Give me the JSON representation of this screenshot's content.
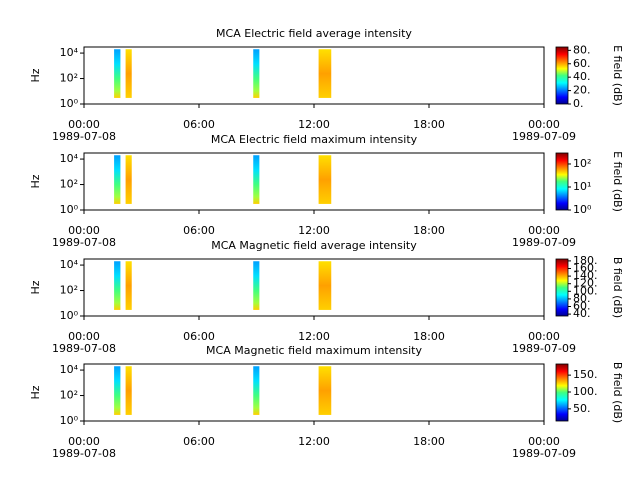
{
  "chart_data": [
    {
      "type": "spectrogram",
      "title": "MCA  Electric field average intensity",
      "ylabel": "Hz",
      "ylog": true,
      "ylim": [
        1,
        30000
      ],
      "yticks": [
        {
          "value": 1,
          "label": "10⁰"
        },
        {
          "value": 100,
          "label": "10²"
        },
        {
          "value": 10000,
          "label": "10⁴"
        }
      ],
      "xlim": [
        0,
        24
      ],
      "xticks": [
        {
          "value": 0,
          "label": "00:00"
        },
        {
          "value": 6,
          "label": "06:00"
        },
        {
          "value": 12,
          "label": "12:00"
        },
        {
          "value": 18,
          "label": "18:00"
        },
        {
          "value": 24,
          "label": "00:00"
        }
      ],
      "xtick_dates": [
        {
          "value": 0,
          "label": "1989-07-08"
        },
        {
          "value": 24,
          "label": "1989-07-09"
        }
      ],
      "intervals": [
        [
          1.57,
          1.9
        ],
        [
          2.17,
          2.49
        ],
        [
          8.83,
          9.15
        ],
        [
          12.24,
          12.9
        ]
      ],
      "frequency_range": [
        3,
        20000
      ],
      "colorbar_label": "E field (dB)",
      "clog": false,
      "clim": [
        0,
        85
      ],
      "cticks": [
        {
          "value": 0,
          "label": "0."
        },
        {
          "value": 20,
          "label": "20."
        },
        {
          "value": 40,
          "label": "40."
        },
        {
          "value": 60,
          "label": "60."
        },
        {
          "value": 80,
          "label": "80."
        }
      ]
    },
    {
      "type": "spectrogram",
      "title": "MCA  Electric field maximum intensity",
      "ylabel": "Hz",
      "ylog": true,
      "ylim": [
        1,
        30000
      ],
      "yticks": [
        {
          "value": 1,
          "label": "10⁰"
        },
        {
          "value": 100,
          "label": "10²"
        },
        {
          "value": 10000,
          "label": "10⁴"
        }
      ],
      "xlim": [
        0,
        24
      ],
      "xticks": [
        {
          "value": 0,
          "label": "00:00"
        },
        {
          "value": 6,
          "label": "06:00"
        },
        {
          "value": 12,
          "label": "12:00"
        },
        {
          "value": 18,
          "label": "18:00"
        },
        {
          "value": 24,
          "label": "00:00"
        }
      ],
      "xtick_dates": [
        {
          "value": 0,
          "label": "1989-07-08"
        },
        {
          "value": 24,
          "label": "1989-07-09"
        }
      ],
      "intervals": [
        [
          1.57,
          1.9
        ],
        [
          2.17,
          2.49
        ],
        [
          8.83,
          9.15
        ],
        [
          12.24,
          12.9
        ]
      ],
      "frequency_range": [
        3,
        20000
      ],
      "colorbar_label": "E field (dB)",
      "clog": true,
      "clim": [
        1,
        300
      ],
      "cticks": [
        {
          "value": 1,
          "label": "10⁰"
        },
        {
          "value": 10,
          "label": "10¹"
        },
        {
          "value": 100,
          "label": "10²"
        }
      ]
    },
    {
      "type": "spectrogram",
      "title": "MCA  Magnetic field average intensity",
      "ylabel": "Hz",
      "ylog": true,
      "ylim": [
        1,
        30000
      ],
      "yticks": [
        {
          "value": 1,
          "label": "10⁰"
        },
        {
          "value": 100,
          "label": "10²"
        },
        {
          "value": 10000,
          "label": "10⁴"
        }
      ],
      "xlim": [
        0,
        24
      ],
      "xticks": [
        {
          "value": 0,
          "label": "00:00"
        },
        {
          "value": 6,
          "label": "06:00"
        },
        {
          "value": 12,
          "label": "12:00"
        },
        {
          "value": 18,
          "label": "18:00"
        },
        {
          "value": 24,
          "label": "00:00"
        }
      ],
      "xtick_dates": [
        {
          "value": 0,
          "label": "1989-07-08"
        },
        {
          "value": 24,
          "label": "1989-07-09"
        }
      ],
      "intervals": [
        [
          1.57,
          1.9
        ],
        [
          2.17,
          2.49
        ],
        [
          8.83,
          9.15
        ],
        [
          12.24,
          12.9
        ]
      ],
      "frequency_range": [
        3,
        20000
      ],
      "colorbar_label": "B field (dB)",
      "clog": false,
      "clim": [
        35,
        185
      ],
      "cticks": [
        {
          "value": 40,
          "label": "40."
        },
        {
          "value": 60,
          "label": "60."
        },
        {
          "value": 80,
          "label": "80."
        },
        {
          "value": 100,
          "label": "100."
        },
        {
          "value": 120,
          "label": "120."
        },
        {
          "value": 140,
          "label": "140."
        },
        {
          "value": 160,
          "label": "160."
        },
        {
          "value": 180,
          "label": "180."
        }
      ]
    },
    {
      "type": "spectrogram",
      "title": "MCA  Magnetic field maximum intensity",
      "ylabel": "Hz",
      "ylog": true,
      "ylim": [
        1,
        30000
      ],
      "yticks": [
        {
          "value": 1,
          "label": "10⁰"
        },
        {
          "value": 100,
          "label": "10²"
        },
        {
          "value": 10000,
          "label": "10⁴"
        }
      ],
      "xlim": [
        0,
        24
      ],
      "xticks": [
        {
          "value": 0,
          "label": "00:00"
        },
        {
          "value": 6,
          "label": "06:00"
        },
        {
          "value": 12,
          "label": "12:00"
        },
        {
          "value": 18,
          "label": "18:00"
        },
        {
          "value": 24,
          "label": "00:00"
        }
      ],
      "xtick_dates": [
        {
          "value": 0,
          "label": "1989-07-08"
        },
        {
          "value": 24,
          "label": "1989-07-09"
        }
      ],
      "intervals": [
        [
          1.57,
          1.9
        ],
        [
          2.17,
          2.49
        ],
        [
          8.83,
          9.15
        ],
        [
          12.24,
          12.9
        ]
      ],
      "frequency_range": [
        3,
        20000
      ],
      "colorbar_label": "B field (dB)",
      "clog": false,
      "clim": [
        14,
        183
      ],
      "cticks": [
        {
          "value": 50,
          "label": "50."
        },
        {
          "value": 100,
          "label": "100."
        },
        {
          "value": 150,
          "label": "150."
        }
      ]
    }
  ]
}
